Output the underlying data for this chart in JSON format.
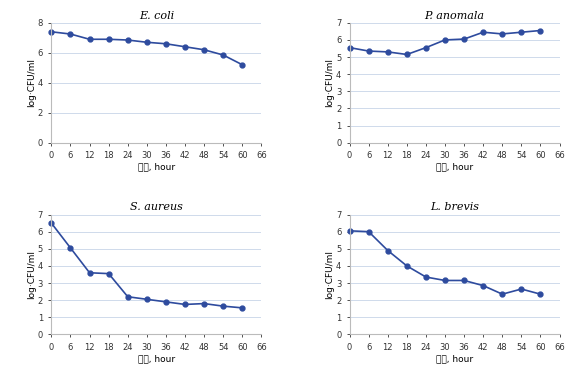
{
  "ecoli": {
    "title": "E. coli",
    "x": [
      0,
      6,
      12,
      18,
      24,
      30,
      36,
      42,
      48,
      54,
      60
    ],
    "y": [
      7.4,
      7.25,
      6.9,
      6.9,
      6.85,
      6.7,
      6.6,
      6.4,
      6.2,
      5.85,
      5.2
    ],
    "ylim": [
      0,
      8
    ],
    "yticks": [
      0,
      2,
      4,
      6,
      8
    ]
  },
  "panoamala": {
    "title": "P. anomala",
    "x": [
      0,
      6,
      12,
      18,
      24,
      30,
      36,
      42,
      48,
      54,
      60
    ],
    "y": [
      5.55,
      5.35,
      5.3,
      5.15,
      5.55,
      6.0,
      6.05,
      6.45,
      6.35,
      6.45,
      6.55
    ],
    "ylim": [
      0,
      7
    ],
    "yticks": [
      0,
      1,
      2,
      3,
      4,
      5,
      6,
      7
    ]
  },
  "saureus": {
    "title": "S. aureus",
    "x": [
      0,
      6,
      12,
      18,
      24,
      30,
      36,
      42,
      48,
      54,
      60
    ],
    "y": [
      6.5,
      5.05,
      3.6,
      3.55,
      2.2,
      2.05,
      1.9,
      1.75,
      1.8,
      1.65,
      1.55
    ],
    "ylim": [
      0,
      7
    ],
    "yticks": [
      0,
      1,
      2,
      3,
      4,
      5,
      6,
      7
    ]
  },
  "lbrevis": {
    "title": "L. brevis",
    "x": [
      0,
      6,
      12,
      18,
      24,
      30,
      36,
      42,
      48,
      54,
      60
    ],
    "y": [
      6.05,
      6.0,
      4.9,
      4.0,
      3.35,
      3.15,
      3.15,
      2.85,
      2.35,
      2.65,
      2.35
    ],
    "ylim": [
      0,
      7
    ],
    "yticks": [
      0,
      1,
      2,
      3,
      4,
      5,
      6,
      7
    ]
  },
  "line_color": "#2e4b9e",
  "marker": "o",
  "markersize": 3.5,
  "linewidth": 1.2,
  "xlabel": "시간, hour",
  "ylabel": "log·CFU/ml",
  "xticks": [
    0,
    6,
    12,
    18,
    24,
    30,
    36,
    42,
    48,
    54,
    60,
    66
  ],
  "background_color": "#ffffff",
  "grid_color": "#c8d4e8"
}
